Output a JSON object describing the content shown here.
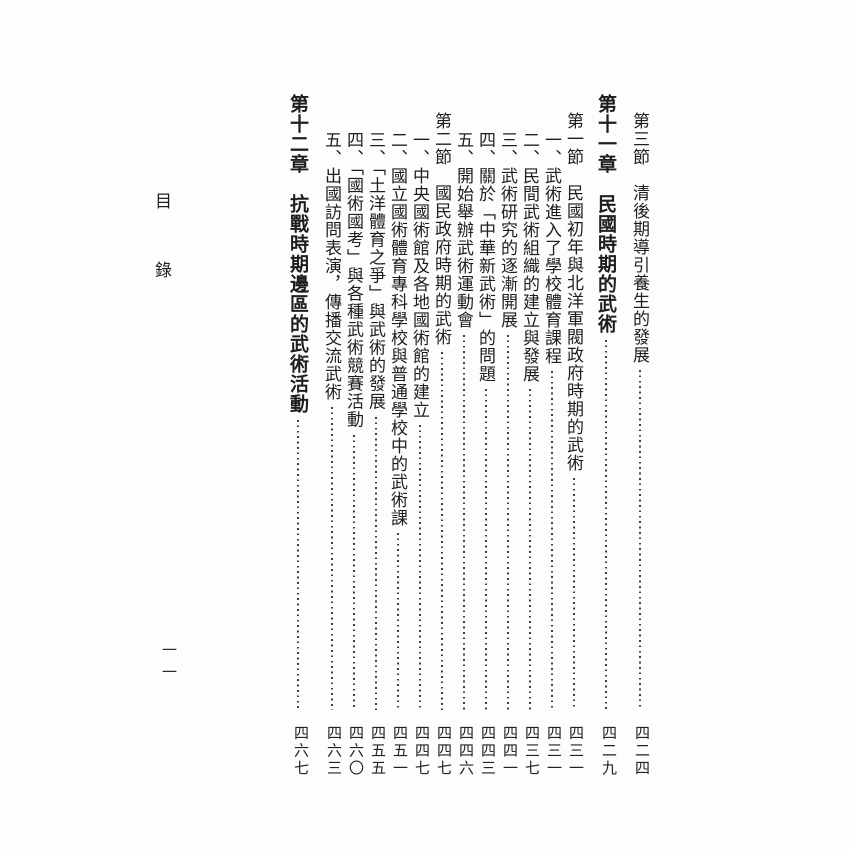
{
  "page": {
    "background": "#fdfdfc",
    "text_color": "#1e1e1e"
  },
  "header": {
    "title": "目錄"
  },
  "footer": {
    "folio": "一一"
  },
  "toc": {
    "entries": [
      {
        "type": "section",
        "text": "第三節　清後期導引養生的發展",
        "page": "四二四"
      },
      {
        "type": "chapter",
        "text": "第十一章　民國時期的武術",
        "page": "四二九"
      },
      {
        "type": "section",
        "text": "第一節　民國初年與北洋軍閥政府時期的武術",
        "page": "四三一"
      },
      {
        "type": "item",
        "text": "一、武術進入了學校體育課程",
        "page": "四三一"
      },
      {
        "type": "item",
        "text": "二、民間武術組織的建立與發展",
        "page": "四三七"
      },
      {
        "type": "item",
        "text": "三、武術研究的逐漸開展",
        "page": "四四一"
      },
      {
        "type": "item",
        "text": "四、關於「中華新武術」的問題",
        "page": "四四三"
      },
      {
        "type": "item",
        "text": "五、開始舉辦武術運動會",
        "page": "四四六"
      },
      {
        "type": "section",
        "text": "第二節　國民政府時期的武術",
        "page": "四四七"
      },
      {
        "type": "item",
        "text": "一、中央國術館及各地國術館的建立",
        "page": "四四七"
      },
      {
        "type": "item",
        "text": "二、國立國術體育專科學校與普通學校中的武術課",
        "page": "四五一"
      },
      {
        "type": "item",
        "text": "三、「土洋體育之爭」與武術的發展",
        "page": "四五五"
      },
      {
        "type": "item",
        "text": "四、「國術國考」與各種武術競賽活動",
        "page": "四六〇"
      },
      {
        "type": "item",
        "text": "五、出國訪問表演，傳播交流武術",
        "page": "四六三"
      },
      {
        "type": "chapter",
        "text": "第十二章　抗戰時期邊區的武術活動",
        "page": "四六七"
      }
    ]
  }
}
